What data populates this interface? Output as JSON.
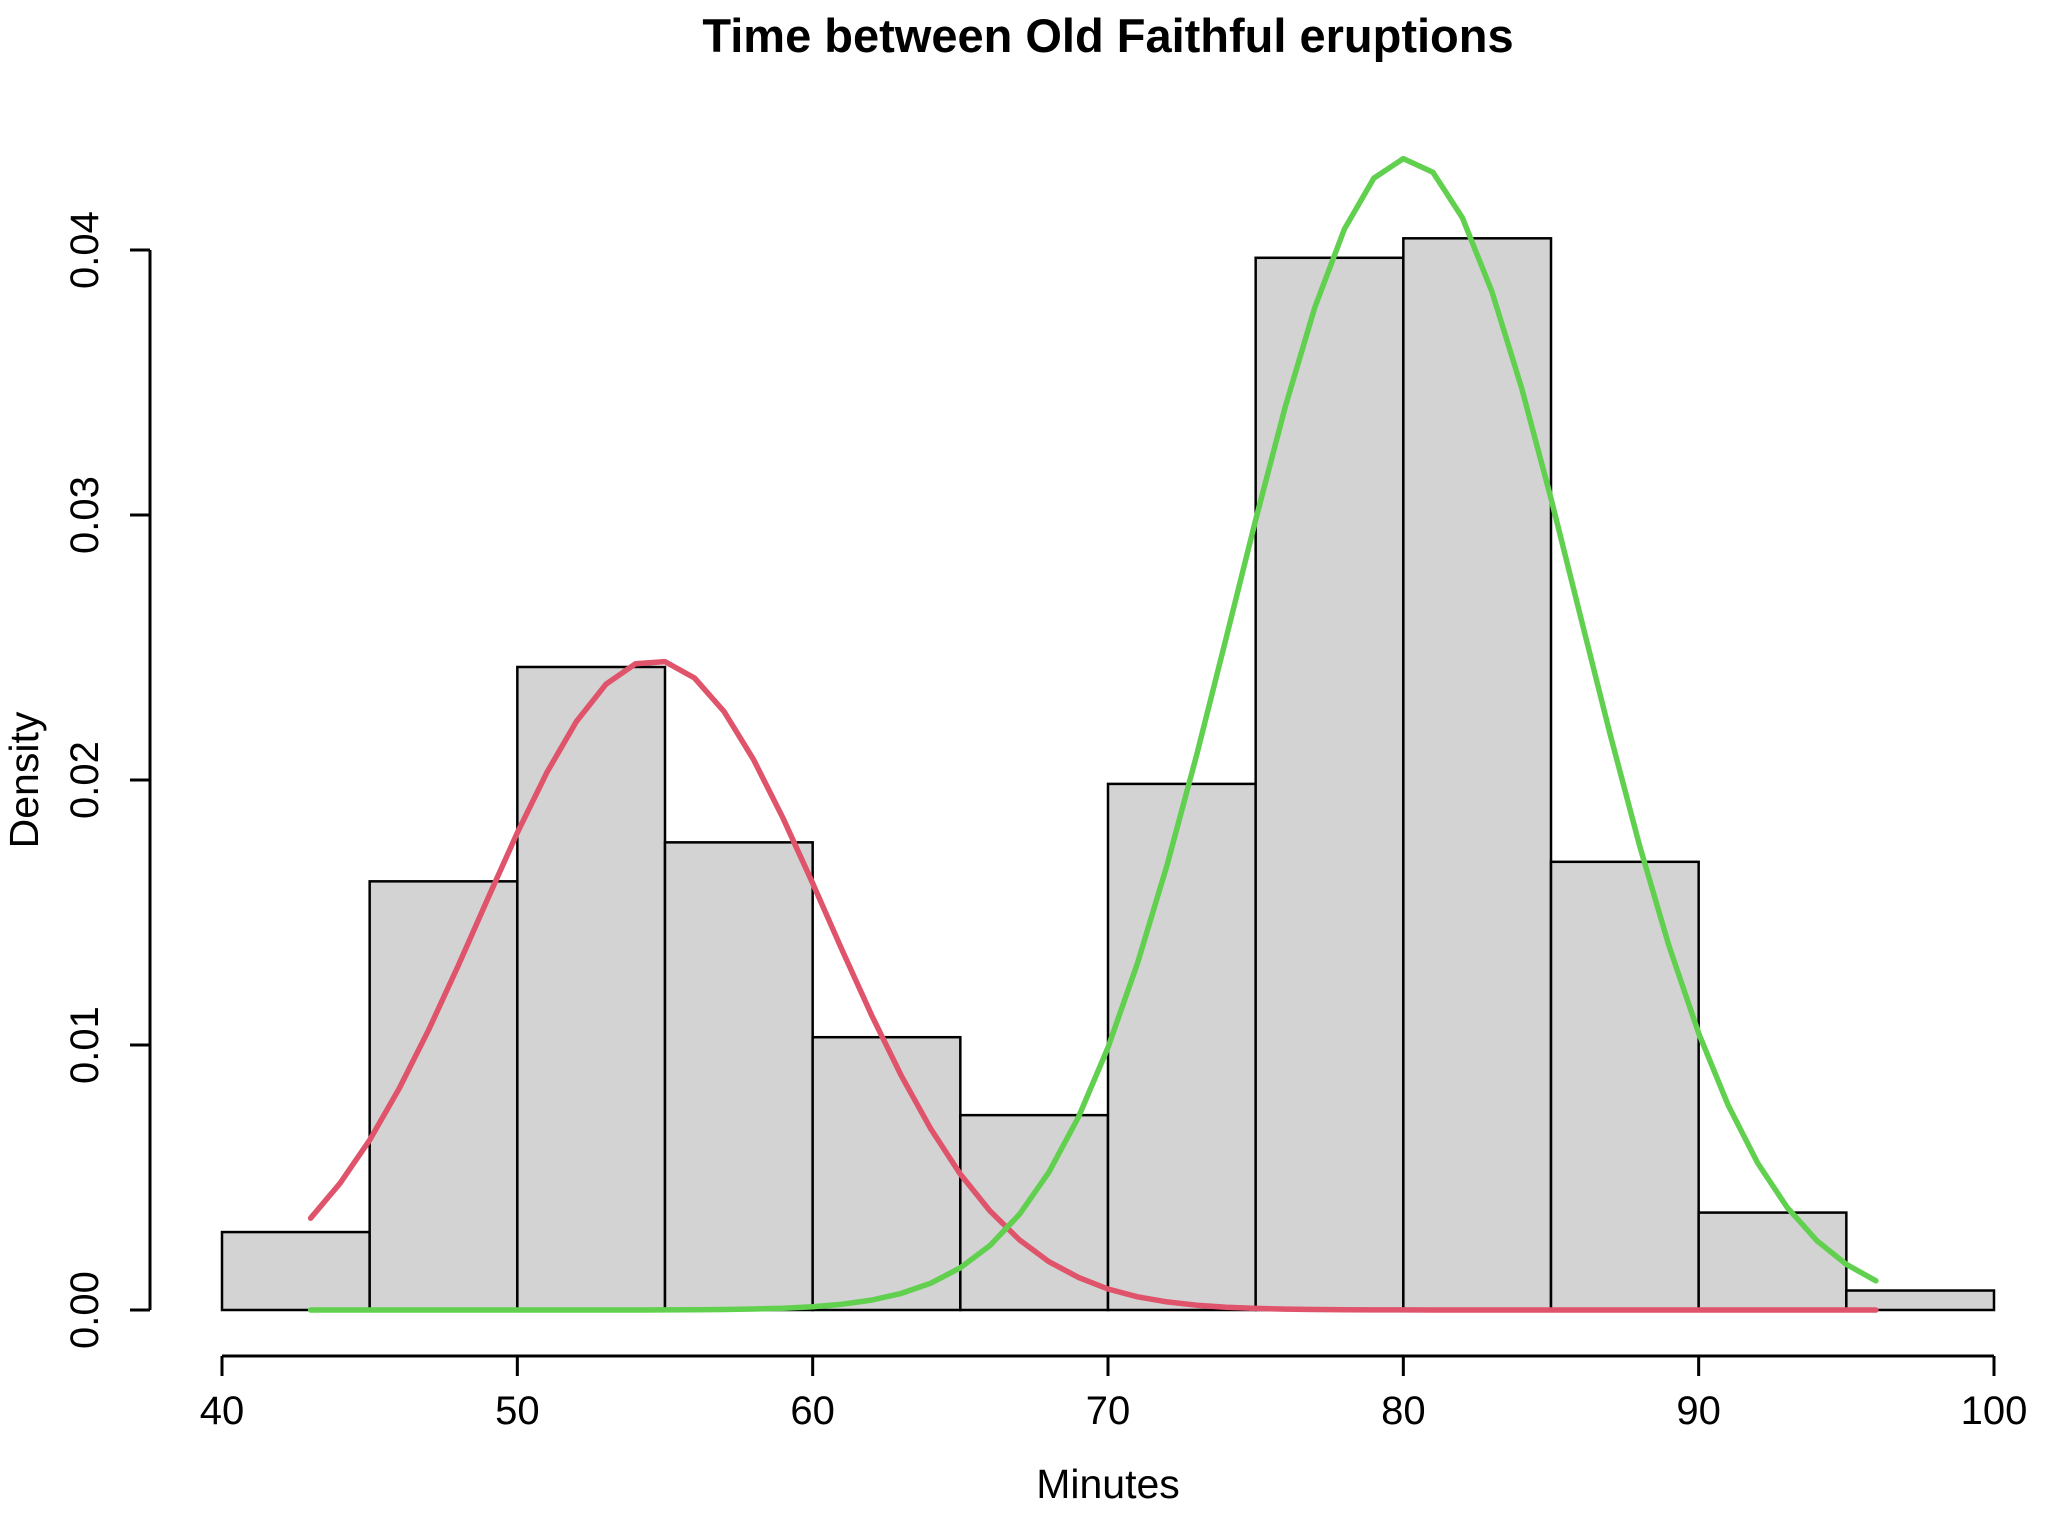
{
  "title": "Time between Old Faithful eruptions",
  "chart_data": {
    "type": "bar",
    "variant": "histogram_with_density_curves",
    "title": "Time between Old Faithful eruptions",
    "xlabel": "Minutes",
    "ylabel": "Density",
    "xlim": [
      40,
      100
    ],
    "ylim": [
      0,
      0.04
    ],
    "grid": false,
    "legend": "none",
    "x_ticks": [
      40,
      50,
      60,
      70,
      80,
      90,
      100
    ],
    "x_tick_labels": [
      "40",
      "50",
      "60",
      "70",
      "80",
      "90",
      "100"
    ],
    "y_ticks": [
      0,
      0.01,
      0.02,
      0.03,
      0.04
    ],
    "y_tick_labels": [
      "0.00",
      "0.01",
      "0.02",
      "0.03",
      "0.04"
    ],
    "bar_fill": "#d3d3d3",
    "bar_stroke": "#000000",
    "axis_color": "#000000",
    "bin_width": 5,
    "bins": [
      {
        "from": 40,
        "to": 45,
        "density": 0.002941
      },
      {
        "from": 45,
        "to": 50,
        "density": 0.016176
      },
      {
        "from": 50,
        "to": 55,
        "density": 0.024265
      },
      {
        "from": 55,
        "to": 60,
        "density": 0.017647
      },
      {
        "from": 60,
        "to": 65,
        "density": 0.010294
      },
      {
        "from": 65,
        "to": 70,
        "density": 0.007353
      },
      {
        "from": 70,
        "to": 75,
        "density": 0.019853
      },
      {
        "from": 75,
        "to": 80,
        "density": 0.039706
      },
      {
        "from": 80,
        "to": 85,
        "density": 0.040441
      },
      {
        "from": 85,
        "to": 90,
        "density": 0.016912
      },
      {
        "from": 90,
        "to": 95,
        "density": 0.003676
      },
      {
        "from": 95,
        "to": 100,
        "density": 0.000735
      }
    ],
    "series": [
      {
        "name": "density-curve-left-red",
        "color": "#DF536B",
        "x": [
          43,
          44,
          45,
          46,
          47,
          48,
          49,
          50,
          51,
          52,
          53,
          54,
          55,
          56,
          57,
          58,
          59,
          60,
          61,
          62,
          63,
          64,
          65,
          66,
          67,
          68,
          69,
          70,
          71,
          72,
          73,
          74,
          75,
          76,
          77,
          78,
          79,
          80,
          81,
          82,
          83,
          84,
          85,
          86,
          87,
          88,
          89,
          90,
          91,
          92,
          93,
          94,
          95,
          96
        ],
        "y": [
          0.003466,
          0.004784,
          0.006415,
          0.008357,
          0.010575,
          0.013,
          0.015523,
          0.018006,
          0.020288,
          0.022207,
          0.023612,
          0.024388,
          0.024469,
          0.023849,
          0.02258,
          0.020767,
          0.018554,
          0.016102,
          0.013575,
          0.011116,
          0.008843,
          0.006834,
          0.00513,
          0.003741,
          0.00265,
          0.001823,
          0.00123,
          0.000792,
          0.000499,
          0.000306,
          0.000182,
          0.000105,
          5.9e-05,
          3.3e-05,
          1.8e-05,
          9e-06,
          5e-06,
          2e-06,
          1e-06,
          1e-06,
          0,
          0,
          0,
          0,
          0,
          0,
          0,
          0,
          0,
          0,
          0,
          0,
          0,
          0
        ]
      },
      {
        "name": "density-curve-right-green",
        "color": "#61D04F",
        "x": [
          43,
          44,
          45,
          46,
          47,
          48,
          49,
          50,
          51,
          52,
          53,
          54,
          55,
          56,
          57,
          58,
          59,
          60,
          61,
          62,
          63,
          64,
          65,
          66,
          67,
          68,
          69,
          70,
          71,
          72,
          73,
          74,
          75,
          76,
          77,
          78,
          79,
          80,
          81,
          82,
          83,
          84,
          85,
          86,
          87,
          88,
          89,
          90,
          91,
          92,
          93,
          94,
          95,
          96
        ],
        "y": [
          0,
          0,
          0,
          0,
          0,
          0,
          0,
          0,
          0,
          0,
          0,
          0,
          5e-06,
          1e-05,
          1.9e-05,
          3.6e-05,
          6.8e-05,
          0.000124,
          0.000219,
          0.000375,
          0.000625,
          0.001012,
          0.001591,
          0.00243,
          0.003608,
          0.005201,
          0.007282,
          0.009904,
          0.013085,
          0.016793,
          0.020935,
          0.025352,
          0.029823,
          0.034077,
          0.037823,
          0.04078,
          0.042709,
          0.043449,
          0.042937,
          0.041215,
          0.038431,
          0.034809,
          0.030626,
          0.026174,
          0.021729,
          0.017521,
          0.013725,
          0.010443,
          0.007725,
          0.005543,
          0.003866,
          0.002618,
          0.001723,
          0.001102
        ]
      }
    ]
  }
}
